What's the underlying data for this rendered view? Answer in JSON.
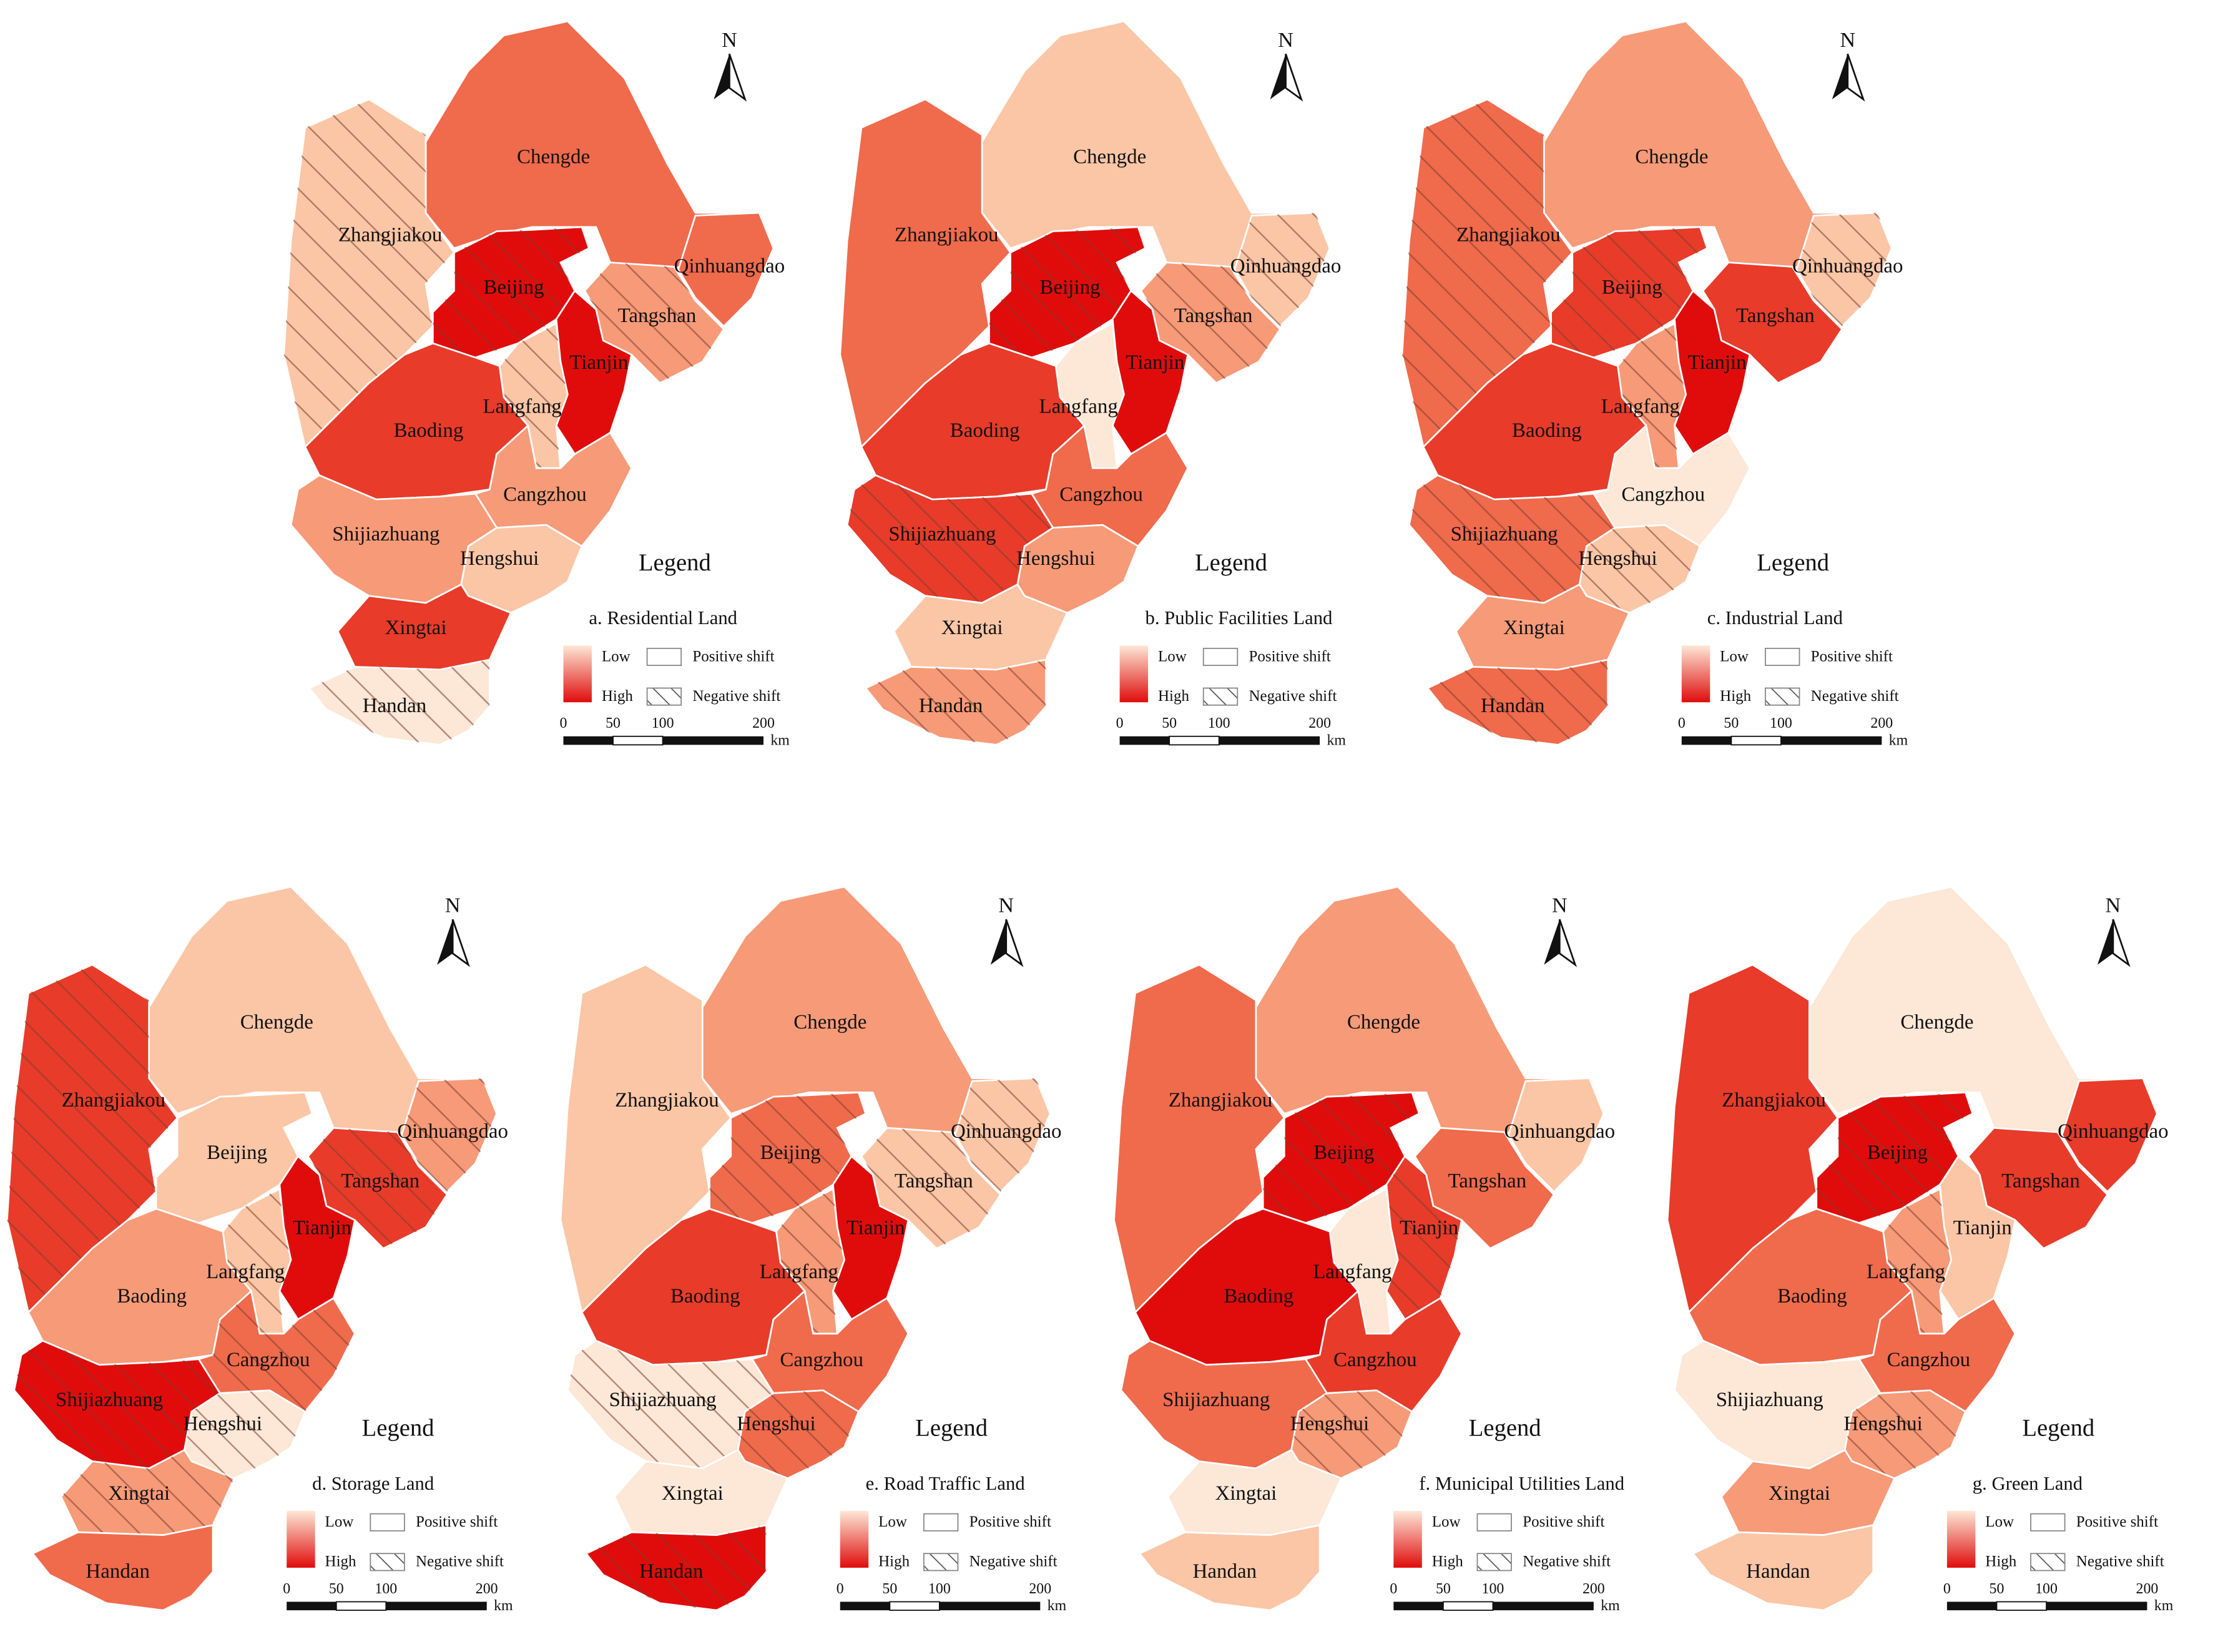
{
  "compass_letter": "N",
  "legend": {
    "title": "Legend",
    "low": "Low",
    "high": "High",
    "positive_shift": "Positive shift",
    "negative_shift": "Negative shift",
    "scale_ticks": [
      "0",
      "50",
      "100",
      "200"
    ],
    "scale_unit": "km"
  },
  "colors": {
    "level_0": "#fde7d6",
    "level_1": "#fbc6a6",
    "level_2": "#f79a78",
    "level_3": "#f06a4c",
    "level_4": "#e83b2a",
    "level_5": "#e00c0c",
    "hatch": "#7a3e2c",
    "border": "#ffffff"
  },
  "region_names": {
    "Chengde": "Chengde",
    "Zhangjiakou": "Zhangjiakou",
    "Beijing": "Beijing",
    "Qinhuangdao": "Qinhuangdao",
    "Tangshan": "Tangshan",
    "Tianjin": "Tianjin",
    "Langfang": "Langfang",
    "Baoding": "Baoding",
    "Cangzhou": "Cangzhou",
    "Shijiazhuang": "Shijiazhuang",
    "Hengshui": "Hengshui",
    "Xingtai": "Xingtai",
    "Handan": "Handan"
  },
  "panels": [
    {
      "title": "a. Residential Land",
      "regions": {
        "Chengde": {
          "level": 3,
          "shift": "positive"
        },
        "Zhangjiakou": {
          "level": 1,
          "shift": "negative"
        },
        "Beijing": {
          "level": 5,
          "shift": "negative"
        },
        "Qinhuangdao": {
          "level": 3,
          "shift": "positive"
        },
        "Tangshan": {
          "level": 2,
          "shift": "negative"
        },
        "Tianjin": {
          "level": 5,
          "shift": "positive"
        },
        "Langfang": {
          "level": 1,
          "shift": "negative"
        },
        "Baoding": {
          "level": 4,
          "shift": "positive"
        },
        "Cangzhou": {
          "level": 2,
          "shift": "positive"
        },
        "Shijiazhuang": {
          "level": 2,
          "shift": "positive"
        },
        "Hengshui": {
          "level": 1,
          "shift": "positive"
        },
        "Xingtai": {
          "level": 4,
          "shift": "positive"
        },
        "Handan": {
          "level": 0,
          "shift": "negative"
        }
      }
    },
    {
      "title": "b. Public Facilities Land",
      "regions": {
        "Chengde": {
          "level": 1,
          "shift": "positive"
        },
        "Zhangjiakou": {
          "level": 3,
          "shift": "positive"
        },
        "Beijing": {
          "level": 5,
          "shift": "negative"
        },
        "Qinhuangdao": {
          "level": 1,
          "shift": "negative"
        },
        "Tangshan": {
          "level": 2,
          "shift": "negative"
        },
        "Tianjin": {
          "level": 5,
          "shift": "positive"
        },
        "Langfang": {
          "level": 0,
          "shift": "positive"
        },
        "Baoding": {
          "level": 4,
          "shift": "positive"
        },
        "Cangzhou": {
          "level": 3,
          "shift": "positive"
        },
        "Shijiazhuang": {
          "level": 4,
          "shift": "negative"
        },
        "Hengshui": {
          "level": 2,
          "shift": "positive"
        },
        "Xingtai": {
          "level": 1,
          "shift": "positive"
        },
        "Handan": {
          "level": 2,
          "shift": "negative"
        }
      }
    },
    {
      "title": "c. Industrial Land",
      "regions": {
        "Chengde": {
          "level": 2,
          "shift": "positive"
        },
        "Zhangjiakou": {
          "level": 3,
          "shift": "negative"
        },
        "Beijing": {
          "level": 4,
          "shift": "negative"
        },
        "Qinhuangdao": {
          "level": 1,
          "shift": "negative"
        },
        "Tangshan": {
          "level": 4,
          "shift": "positive"
        },
        "Tianjin": {
          "level": 5,
          "shift": "positive"
        },
        "Langfang": {
          "level": 2,
          "shift": "negative"
        },
        "Baoding": {
          "level": 4,
          "shift": "positive"
        },
        "Cangzhou": {
          "level": 0,
          "shift": "positive"
        },
        "Shijiazhuang": {
          "level": 3,
          "shift": "negative"
        },
        "Hengshui": {
          "level": 1,
          "shift": "negative"
        },
        "Xingtai": {
          "level": 2,
          "shift": "positive"
        },
        "Handan": {
          "level": 3,
          "shift": "negative"
        }
      }
    },
    {
      "title": "d. Storage Land",
      "regions": {
        "Chengde": {
          "level": 1,
          "shift": "positive"
        },
        "Zhangjiakou": {
          "level": 4,
          "shift": "negative"
        },
        "Beijing": {
          "level": 1,
          "shift": "positive"
        },
        "Qinhuangdao": {
          "level": 2,
          "shift": "negative"
        },
        "Tangshan": {
          "level": 4,
          "shift": "negative"
        },
        "Tianjin": {
          "level": 5,
          "shift": "positive"
        },
        "Langfang": {
          "level": 1,
          "shift": "negative"
        },
        "Baoding": {
          "level": 2,
          "shift": "positive"
        },
        "Cangzhou": {
          "level": 3,
          "shift": "negative"
        },
        "Shijiazhuang": {
          "level": 5,
          "shift": "negative"
        },
        "Hengshui": {
          "level": 0,
          "shift": "negative"
        },
        "Xingtai": {
          "level": 2,
          "shift": "negative"
        },
        "Handan": {
          "level": 3,
          "shift": "positive"
        }
      }
    },
    {
      "title": "e. Road Traffic Land",
      "regions": {
        "Chengde": {
          "level": 2,
          "shift": "positive"
        },
        "Zhangjiakou": {
          "level": 1,
          "shift": "positive"
        },
        "Beijing": {
          "level": 3,
          "shift": "negative"
        },
        "Qinhuangdao": {
          "level": 1,
          "shift": "negative"
        },
        "Tangshan": {
          "level": 1,
          "shift": "negative"
        },
        "Tianjin": {
          "level": 5,
          "shift": "positive"
        },
        "Langfang": {
          "level": 2,
          "shift": "negative"
        },
        "Baoding": {
          "level": 4,
          "shift": "positive"
        },
        "Cangzhou": {
          "level": 3,
          "shift": "positive"
        },
        "Shijiazhuang": {
          "level": 0,
          "shift": "negative"
        },
        "Hengshui": {
          "level": 3,
          "shift": "negative"
        },
        "Xingtai": {
          "level": 0,
          "shift": "positive"
        },
        "Handan": {
          "level": 5,
          "shift": "negative"
        }
      }
    },
    {
      "title": "f. Municipal Utilities Land",
      "regions": {
        "Chengde": {
          "level": 2,
          "shift": "positive"
        },
        "Zhangjiakou": {
          "level": 3,
          "shift": "positive"
        },
        "Beijing": {
          "level": 5,
          "shift": "negative"
        },
        "Qinhuangdao": {
          "level": 1,
          "shift": "positive"
        },
        "Tangshan": {
          "level": 3,
          "shift": "positive"
        },
        "Tianjin": {
          "level": 4,
          "shift": "negative"
        },
        "Langfang": {
          "level": 0,
          "shift": "positive"
        },
        "Baoding": {
          "level": 5,
          "shift": "positive"
        },
        "Cangzhou": {
          "level": 4,
          "shift": "positive"
        },
        "Shijiazhuang": {
          "level": 3,
          "shift": "positive"
        },
        "Hengshui": {
          "level": 2,
          "shift": "negative"
        },
        "Xingtai": {
          "level": 0,
          "shift": "positive"
        },
        "Handan": {
          "level": 1,
          "shift": "positive"
        }
      }
    },
    {
      "title": "g. Green Land",
      "regions": {
        "Chengde": {
          "level": 0,
          "shift": "positive"
        },
        "Zhangjiakou": {
          "level": 4,
          "shift": "positive"
        },
        "Beijing": {
          "level": 5,
          "shift": "negative"
        },
        "Qinhuangdao": {
          "level": 4,
          "shift": "positive"
        },
        "Tangshan": {
          "level": 4,
          "shift": "positive"
        },
        "Tianjin": {
          "level": 1,
          "shift": "positive"
        },
        "Langfang": {
          "level": 2,
          "shift": "negative"
        },
        "Baoding": {
          "level": 3,
          "shift": "positive"
        },
        "Cangzhou": {
          "level": 3,
          "shift": "positive"
        },
        "Shijiazhuang": {
          "level": 0,
          "shift": "positive"
        },
        "Hengshui": {
          "level": 2,
          "shift": "negative"
        },
        "Xingtai": {
          "level": 2,
          "shift": "positive"
        },
        "Handan": {
          "level": 1,
          "shift": "positive"
        }
      }
    }
  ]
}
